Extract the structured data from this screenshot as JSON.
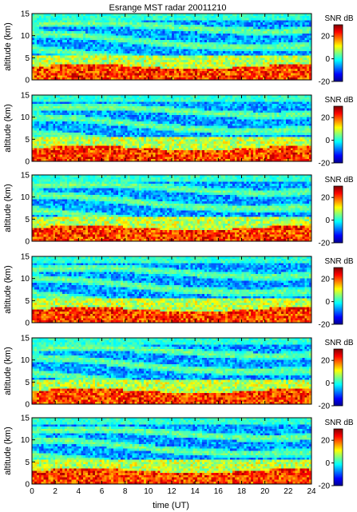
{
  "chart_data": {
    "type": "heatmap",
    "title": "Esrange MST radar 20011210",
    "xlabel": "time (UT)",
    "ylabel": "altitude (km)",
    "xlim": [
      0,
      24
    ],
    "ylim": [
      0,
      15
    ],
    "x_ticks": [
      "0",
      "2",
      "4",
      "6",
      "8",
      "10",
      "12",
      "14",
      "16",
      "18",
      "20",
      "22",
      "24"
    ],
    "y_ticks": [
      "0",
      "5",
      "10",
      "15"
    ],
    "colorbar": {
      "label": "SNR dB",
      "range": [
        -20,
        30
      ],
      "ticks": [
        "20",
        "0",
        "-20"
      ],
      "colors": [
        "#00008f",
        "#0000ff",
        "#007fff",
        "#00ffff",
        "#7fff7f",
        "#ffff00",
        "#ff7f00",
        "#ff0000",
        "#7f0000"
      ]
    },
    "panels": [
      {
        "index": 1,
        "surface_max_km": 3.0,
        "layers_km": [
          12.5,
          10.0,
          6.5
        ]
      },
      {
        "index": 2,
        "surface_max_km": 3.0,
        "layers_km": [
          12.0,
          9.5,
          6.0
        ]
      },
      {
        "index": 3,
        "surface_max_km": 3.0,
        "layers_km": [
          12.5,
          10.0,
          6.5
        ]
      },
      {
        "index": 4,
        "surface_max_km": 3.0,
        "layers_km": [
          12.0,
          9.5,
          6.0
        ]
      },
      {
        "index": 5,
        "surface_max_km": 3.0,
        "layers_km": [
          12.5,
          10.0,
          6.5
        ]
      },
      {
        "index": 6,
        "surface_max_km": 3.0,
        "layers_km": [
          12.0,
          9.5,
          6.0
        ]
      }
    ]
  }
}
